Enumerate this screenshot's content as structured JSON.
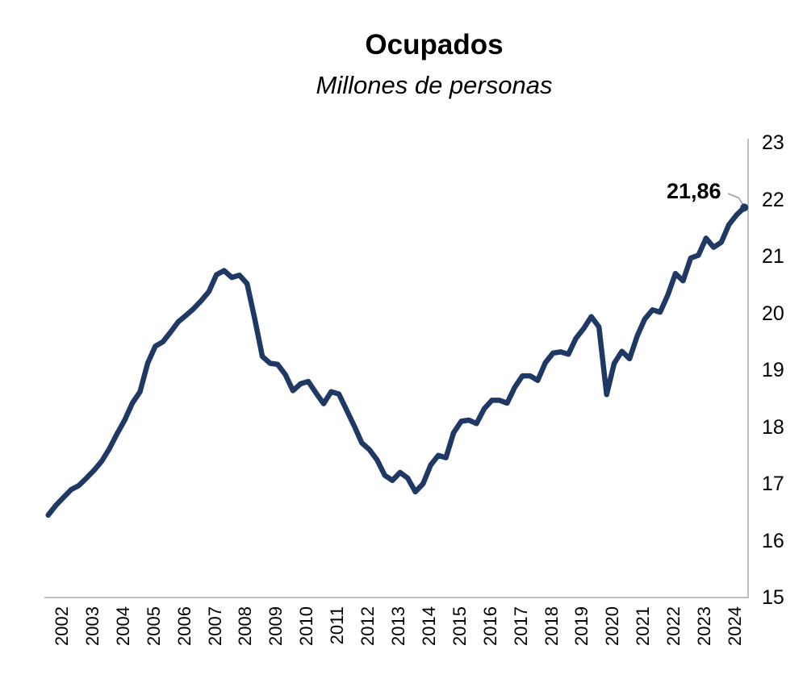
{
  "title": "Ocupados",
  "subtitle": "Millones de personas",
  "colors": {
    "line": "#1F3864",
    "axis": "#BFBFBF",
    "leader": "#A6A6A6",
    "text": "#000000",
    "background": "#FFFFFF"
  },
  "chart_data": {
    "type": "line",
    "title": "Ocupados",
    "subtitle": "Millones de personas",
    "ylabel": "",
    "xlabel": "",
    "unit": "millones de personas",
    "frequency": "quarterly",
    "x_start": "2002-Q1",
    "x_end": "2024-Q4",
    "ylim": [
      15,
      23
    ],
    "grid": false,
    "legend": false,
    "y_axis_side": "right",
    "y_ticks": [
      15,
      16,
      17,
      18,
      19,
      20,
      21,
      22,
      23
    ],
    "x_tick_labels": [
      "2002",
      "2003",
      "2004",
      "2005",
      "2006",
      "2007",
      "2008",
      "2009",
      "2010",
      "2011",
      "2012",
      "2013",
      "2014",
      "2015",
      "2016",
      "2017",
      "2018",
      "2019",
      "2020",
      "2021",
      "2022",
      "2023",
      "2024"
    ],
    "last_point_label": "21,86",
    "last_value": 21.86,
    "values": [
      16.45,
      16.62,
      16.76,
      16.9,
      16.97,
      17.1,
      17.24,
      17.4,
      17.62,
      17.88,
      18.12,
      18.42,
      18.62,
      19.12,
      19.42,
      19.5,
      19.67,
      19.85,
      19.96,
      20.08,
      20.22,
      20.38,
      20.68,
      20.75,
      20.63,
      20.67,
      20.52,
      19.9,
      19.24,
      19.12,
      19.1,
      18.92,
      18.64,
      18.76,
      18.8,
      18.6,
      18.41,
      18.62,
      18.58,
      18.3,
      18.02,
      17.72,
      17.6,
      17.42,
      17.15,
      17.06,
      17.2,
      17.1,
      16.86,
      17.0,
      17.33,
      17.5,
      17.46,
      17.9,
      18.1,
      18.12,
      18.06,
      18.32,
      18.47,
      18.47,
      18.42,
      18.7,
      18.9,
      18.9,
      18.82,
      19.13,
      19.3,
      19.32,
      19.28,
      19.56,
      19.73,
      19.94,
      19.76,
      18.57,
      19.12,
      19.33,
      19.2,
      19.6,
      19.9,
      20.06,
      20.02,
      20.32,
      20.7,
      20.57,
      20.97,
      21.02,
      21.32,
      21.16,
      21.25,
      21.56,
      21.73,
      21.86
    ]
  }
}
